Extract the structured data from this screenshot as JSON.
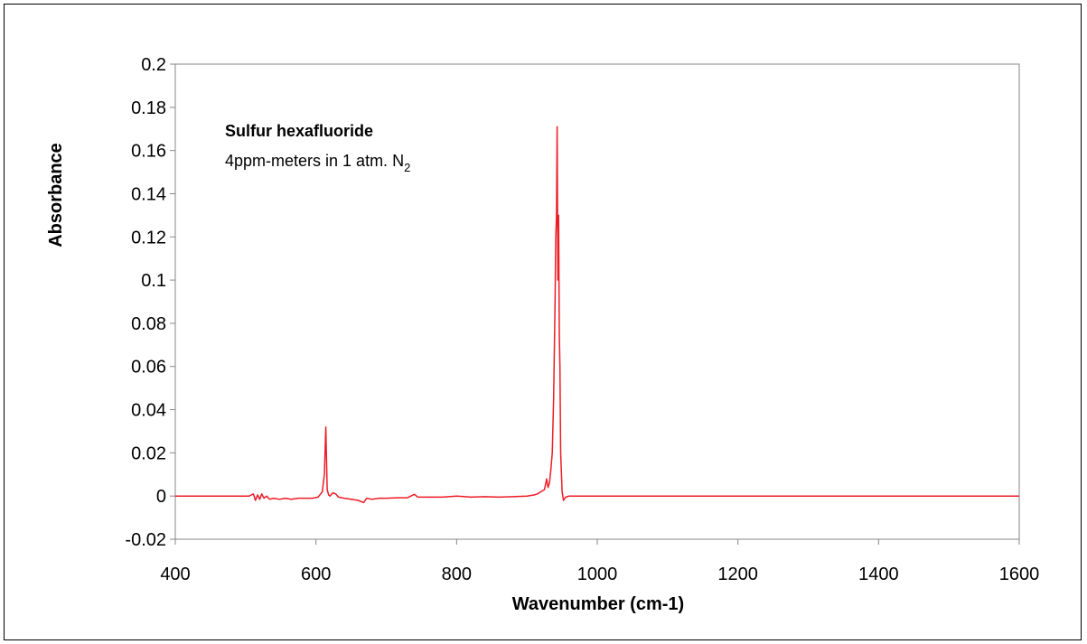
{
  "chart_data": {
    "type": "line",
    "title": "",
    "xlabel": "Wavenumber (cm-1)",
    "ylabel": "Absorbance",
    "xlim": [
      400,
      1600
    ],
    "ylim": [
      -0.02,
      0.2
    ],
    "xticks": [
      400,
      600,
      800,
      1000,
      1200,
      1400,
      1600
    ],
    "xtick_labels": [
      "400",
      "600",
      "800",
      "1000",
      "1200",
      "1400",
      "1600"
    ],
    "yticks": [
      -0.02,
      0,
      0.02,
      0.04,
      0.06,
      0.08,
      0.1,
      0.12,
      0.14,
      0.16,
      0.18,
      0.2
    ],
    "ytick_labels": [
      "-0.02",
      "0",
      "0.02",
      "0.04",
      "0.06",
      "0.08",
      "0.1",
      "0.12",
      "0.14",
      "0.16",
      "0.18",
      "0.2"
    ],
    "grid": false,
    "legend": "none",
    "annotations": {
      "line1": "Sulfur hexafluoride",
      "line2_main": "4ppm-meters in 1 atm. N",
      "line2_sub": "2"
    },
    "series": [
      {
        "color": "#ee1c25",
        "x": [
          400,
          505,
          508,
          511,
          514,
          517,
          520,
          523,
          526,
          530,
          534,
          540,
          548,
          556,
          565,
          575,
          585,
          595,
          603,
          609,
          612,
          614,
          615,
          616,
          618,
          620,
          624,
          628,
          632,
          640,
          650,
          660,
          668,
          672,
          680,
          690,
          700,
          715,
          730,
          740,
          745,
          760,
          780,
          800,
          820,
          840,
          860,
          880,
          900,
          910,
          915,
          920,
          925,
          928,
          930,
          932,
          934,
          936,
          938,
          940,
          941,
          942,
          943,
          944,
          945,
          946,
          947,
          948,
          950,
          952,
          955,
          960,
          970,
          1000,
          1200,
          1400,
          1600
        ],
        "y": [
          0,
          0,
          0.0005,
          0.001,
          -0.002,
          0.0005,
          -0.0015,
          0.001,
          -0.001,
          0.0,
          -0.0015,
          -0.001,
          -0.0015,
          -0.001,
          -0.0015,
          -0.001,
          -0.001,
          -0.001,
          -0.0005,
          0.002,
          0.01,
          0.032,
          0.018,
          0.003,
          0.0005,
          0.0,
          0.0015,
          0.001,
          -0.0005,
          -0.001,
          -0.0015,
          -0.002,
          -0.003,
          -0.001,
          -0.0015,
          -0.001,
          -0.001,
          -0.0008,
          -0.0008,
          0.0008,
          -0.0005,
          -0.0005,
          -0.0005,
          0.0,
          -0.0005,
          -0.0003,
          -0.0005,
          -0.0003,
          0.0,
          0.0005,
          0.001,
          0.002,
          0.003,
          0.008,
          0.004,
          0.006,
          0.012,
          0.02,
          0.045,
          0.09,
          0.12,
          0.13,
          0.171,
          0.1,
          0.13,
          0.075,
          0.06,
          0.02,
          0.002,
          -0.002,
          -0.0005,
          0.0,
          0.0,
          0.0,
          0.0,
          0.0,
          0.0
        ]
      }
    ]
  }
}
